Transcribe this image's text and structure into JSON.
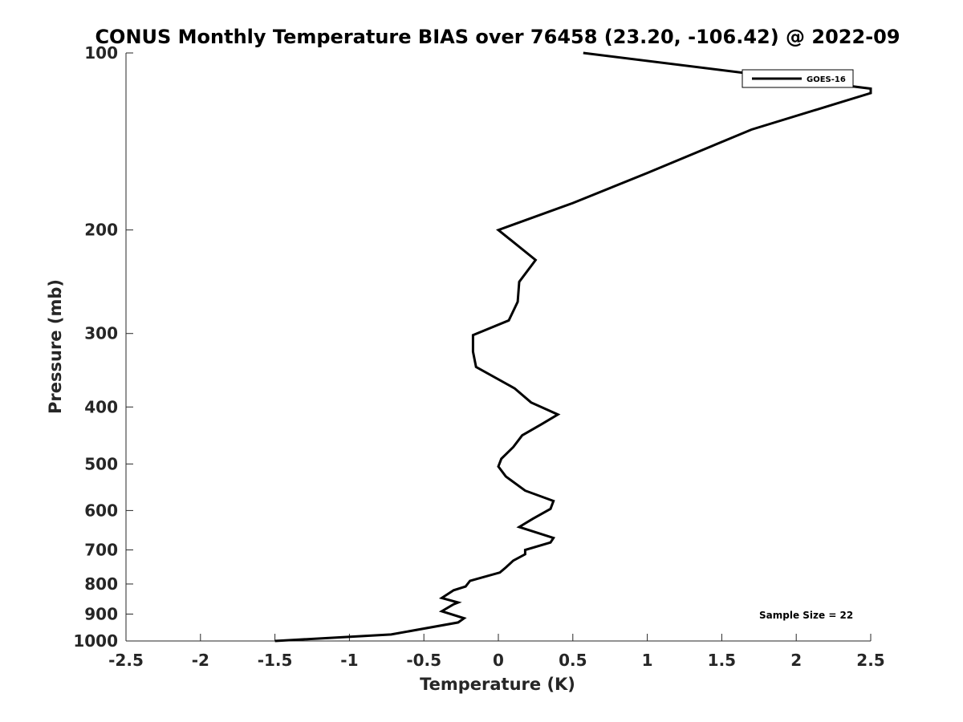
{
  "chart_data": {
    "type": "line",
    "title": "CONUS Monthly Temperature BIAS over 76458 (23.20, -106.42) @ 2022-09",
    "xlabel": "Temperature (K)",
    "ylabel": "Pressure (mb)",
    "xlim": [
      -2.5,
      2.5
    ],
    "ylim": [
      100,
      1000
    ],
    "y_scale": "log",
    "y_reversed": true,
    "x_ticks": [
      "-2.5",
      "-2",
      "-1.5",
      "-1",
      "-0.5",
      "0",
      "0.5",
      "1",
      "1.5",
      "2",
      "2.5"
    ],
    "x_tick_values": [
      -2.5,
      -2,
      -1.5,
      -1,
      -0.5,
      0,
      0.5,
      1,
      1.5,
      2,
      2.5
    ],
    "y_ticks": [
      "100",
      "200",
      "300",
      "400",
      "500",
      "600",
      "700",
      "800",
      "900",
      "1000"
    ],
    "y_tick_values": [
      100,
      200,
      300,
      400,
      500,
      600,
      700,
      800,
      900,
      1000
    ],
    "legend": {
      "position": "top-right",
      "entries": [
        "GOES-16"
      ]
    },
    "annotation": "Sample Size = 22",
    "series": [
      {
        "name": "GOES-16",
        "color": "#000000",
        "points": [
          [
            0.57,
            100
          ],
          [
            2.5,
            115
          ],
          [
            2.5,
            117
          ],
          [
            1.7,
            135
          ],
          [
            1.0,
            160
          ],
          [
            0.5,
            180
          ],
          [
            0.0,
            200
          ],
          [
            0.25,
            225
          ],
          [
            0.14,
            245
          ],
          [
            0.13,
            265
          ],
          [
            0.07,
            285
          ],
          [
            -0.17,
            302
          ],
          [
            -0.17,
            322
          ],
          [
            -0.15,
            342
          ],
          [
            0.11,
            372
          ],
          [
            0.22,
            393
          ],
          [
            0.4,
            412
          ],
          [
            0.29,
            428
          ],
          [
            0.16,
            447
          ],
          [
            0.1,
            468
          ],
          [
            0.02,
            490
          ],
          [
            0.0,
            505
          ],
          [
            0.05,
            525
          ],
          [
            0.18,
            555
          ],
          [
            0.37,
            578
          ],
          [
            0.35,
            596
          ],
          [
            0.23,
            620
          ],
          [
            0.14,
            640
          ],
          [
            0.37,
            668
          ],
          [
            0.35,
            680
          ],
          [
            0.18,
            700
          ],
          [
            0.18,
            712
          ],
          [
            0.1,
            730
          ],
          [
            0.05,
            750
          ],
          [
            0.01,
            765
          ],
          [
            -0.15,
            785
          ],
          [
            -0.19,
            790
          ],
          [
            -0.22,
            808
          ],
          [
            -0.3,
            820
          ],
          [
            -0.38,
            845
          ],
          [
            -0.27,
            860
          ],
          [
            -0.3,
            866
          ],
          [
            -0.38,
            890
          ],
          [
            -0.23,
            915
          ],
          [
            -0.27,
            930
          ],
          [
            -0.72,
            975
          ],
          [
            -1.5,
            1000
          ]
        ]
      }
    ]
  }
}
